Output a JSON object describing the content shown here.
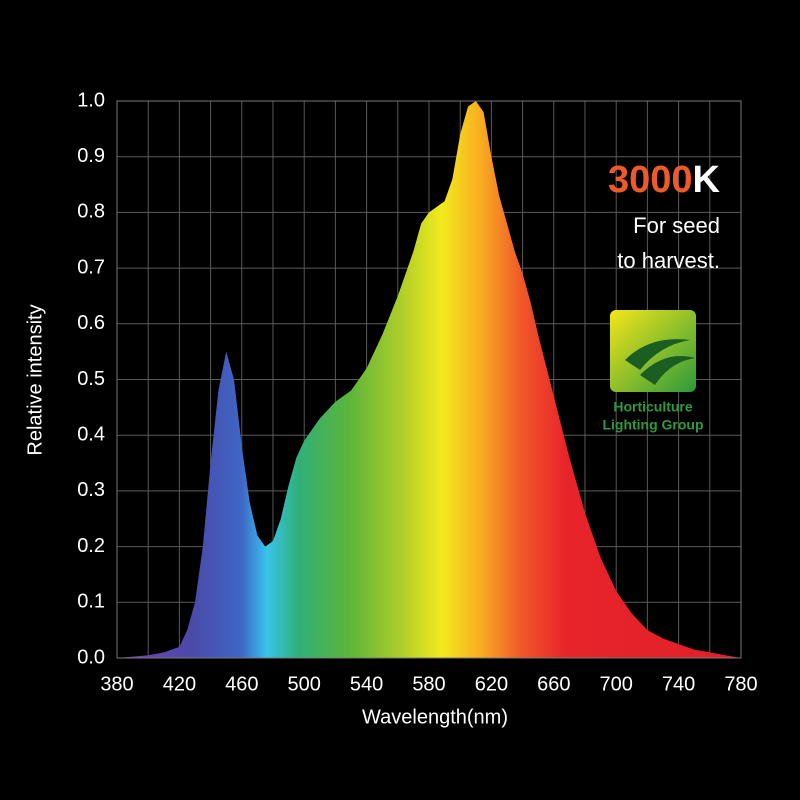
{
  "chart_data": {
    "type": "area",
    "xlabel": "Wavelength(nm)",
    "ylabel": "Relative intensity",
    "annotation_number": "3000",
    "annotation_unit": "K",
    "annotation_lines": [
      "For seed",
      "to harvest."
    ],
    "logo_lines": [
      "Horticulture",
      "Lighting Group"
    ],
    "x": [
      380,
      400,
      410,
      420,
      425,
      430,
      435,
      440,
      445,
      450,
      455,
      460,
      465,
      470,
      475,
      480,
      485,
      490,
      495,
      500,
      510,
      520,
      530,
      540,
      550,
      560,
      570,
      575,
      580,
      590,
      595,
      600,
      605,
      610,
      615,
      620,
      625,
      630,
      635,
      640,
      645,
      650,
      660,
      670,
      680,
      690,
      700,
      710,
      720,
      730,
      740,
      750,
      760,
      770,
      780
    ],
    "values": [
      0.0,
      0.005,
      0.01,
      0.02,
      0.05,
      0.1,
      0.2,
      0.35,
      0.48,
      0.55,
      0.5,
      0.38,
      0.28,
      0.22,
      0.2,
      0.21,
      0.25,
      0.31,
      0.36,
      0.39,
      0.43,
      0.46,
      0.48,
      0.52,
      0.58,
      0.65,
      0.73,
      0.78,
      0.8,
      0.82,
      0.86,
      0.94,
      0.99,
      1.0,
      0.98,
      0.9,
      0.83,
      0.78,
      0.73,
      0.69,
      0.64,
      0.58,
      0.47,
      0.36,
      0.26,
      0.18,
      0.12,
      0.08,
      0.05,
      0.035,
      0.025,
      0.015,
      0.01,
      0.005,
      0.0
    ],
    "xlim": [
      380,
      780
    ],
    "ylim": [
      0,
      1
    ],
    "xticks": [
      380,
      420,
      460,
      500,
      540,
      580,
      620,
      660,
      700,
      740,
      780
    ],
    "yticks": [
      {
        "value": 0,
        "label": "0.0"
      },
      0.1,
      0.2,
      0.3,
      0.4,
      0.5,
      0.6,
      0.7,
      0.8,
      0.9,
      {
        "value": 1,
        "label": "1.0"
      }
    ],
    "grid": true
  }
}
